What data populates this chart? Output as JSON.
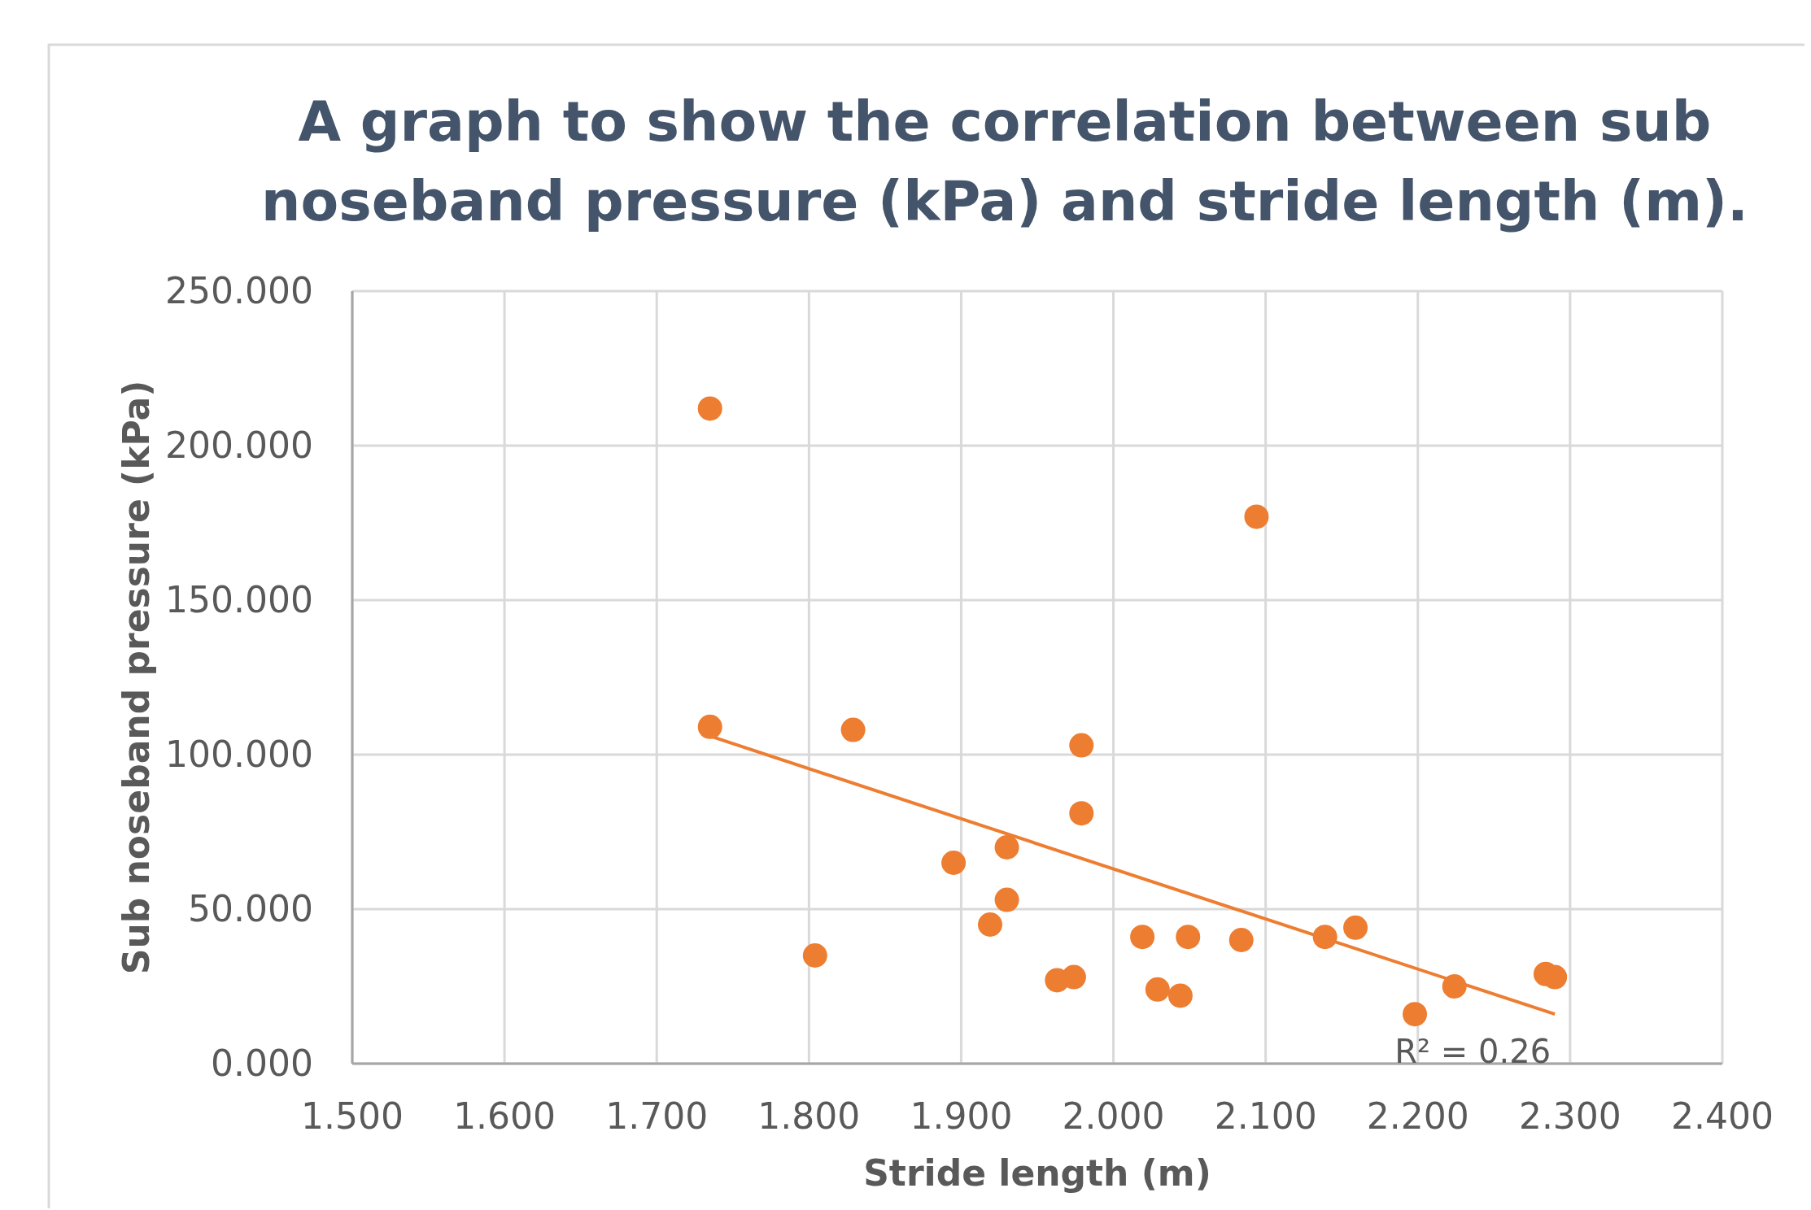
{
  "chart_data": {
    "type": "scatter",
    "title": "A graph to show the correlation between sub noseband pressure (kPa) and stride length (m).",
    "xlabel": "Stride length (m)",
    "ylabel": "Sub noseband pressure (kPa)",
    "xlim": [
      1.5,
      2.4
    ],
    "xticks": [
      {
        "value": 1.5,
        "label": "1.500"
      },
      {
        "value": 1.6,
        "label": "1.600"
      },
      {
        "value": 1.7,
        "label": "1.700"
      },
      {
        "value": 1.8,
        "label": "1.800"
      },
      {
        "value": 1.9,
        "label": "1.900"
      },
      {
        "value": 2.0,
        "label": "2.000"
      },
      {
        "value": 2.1,
        "label": "2.100"
      },
      {
        "value": 2.2,
        "label": "2.200"
      },
      {
        "value": 2.3,
        "label": "2.300"
      },
      {
        "value": 2.4,
        "label": "2.400"
      }
    ],
    "ylim": [
      0,
      250
    ],
    "yticks": [
      {
        "value": 0,
        "label": "0.000"
      },
      {
        "value": 50,
        "label": "50.000"
      },
      {
        "value": 100,
        "label": "100.000"
      },
      {
        "value": 150,
        "label": "150.000"
      },
      {
        "value": 200,
        "label": "200.000"
      },
      {
        "value": 250,
        "label": "250.000"
      }
    ],
    "grid": true,
    "series": [
      {
        "marker": "circle",
        "color": "#ed7d31",
        "x": [
          1.735,
          1.735,
          1.829,
          1.804,
          1.895,
          1.93,
          1.93,
          1.919,
          1.979,
          1.979,
          1.963,
          1.974,
          2.019,
          2.029,
          2.044,
          2.049,
          2.084,
          2.094,
          2.139,
          2.159,
          2.198,
          2.224,
          2.284,
          2.29
        ],
        "values": [
          212,
          109,
          108,
          35,
          65,
          70,
          53,
          45,
          103,
          81,
          27,
          28,
          41,
          24,
          22,
          41,
          40,
          177,
          41,
          44,
          16,
          25,
          29,
          28
        ]
      },
      {
        "type": "line",
        "marker": "none",
        "color": "#ed7d31",
        "x": [
          1.735,
          2.29
        ],
        "values": [
          106,
          16
        ]
      }
    ],
    "annotations": [
      {
        "text": "R² = 0.26",
        "x": 2.29,
        "y": 16
      }
    ]
  }
}
